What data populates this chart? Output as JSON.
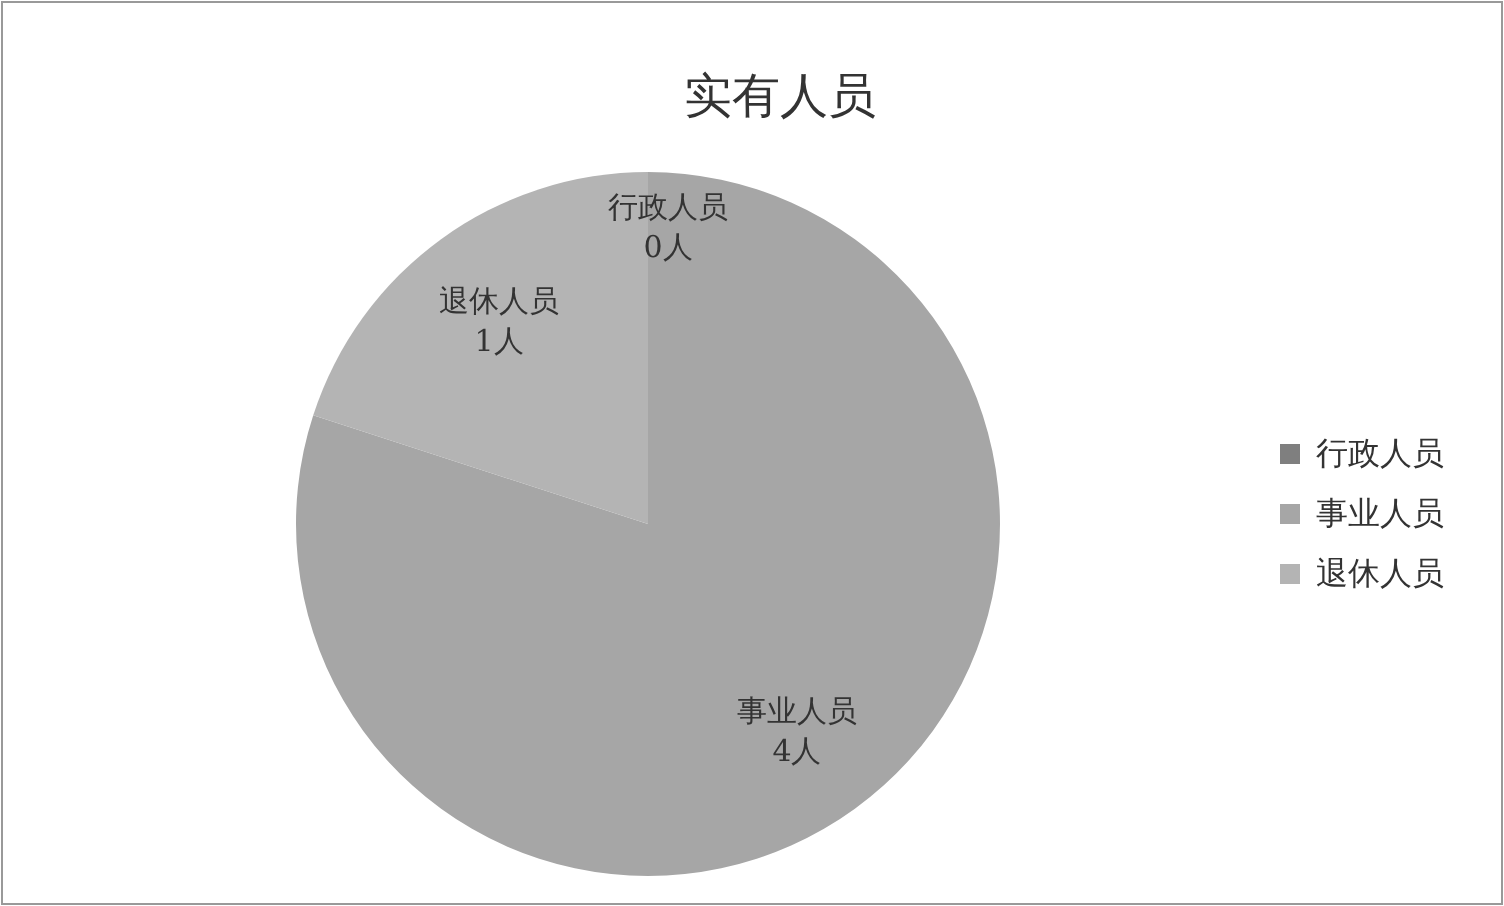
{
  "chart_data": {
    "type": "pie",
    "title": "实有人员",
    "categories": [
      "行政人员",
      "事业人员",
      "退休人员"
    ],
    "values": [
      0,
      4,
      1
    ],
    "value_labels": [
      "0人",
      "4人",
      "1人"
    ],
    "colors": [
      "#7f7f7f",
      "#a6a6a6",
      "#b4b4b4"
    ],
    "legend": "right"
  }
}
